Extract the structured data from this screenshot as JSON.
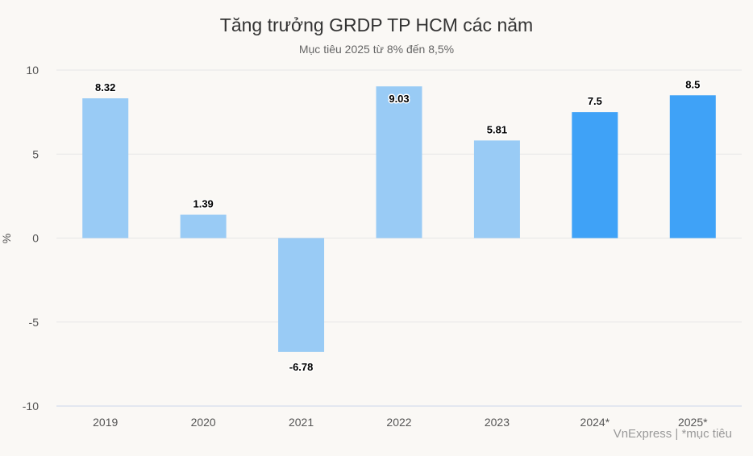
{
  "chart_data": {
    "type": "bar",
    "title": "Tăng trưởng GRDP TP HCM các năm",
    "subtitle": "Mục tiêu 2025 từ 8% đến 8,5%",
    "ylabel": "%",
    "xlabel": "",
    "categories": [
      "2019",
      "2020",
      "2021",
      "2022",
      "2023",
      "2024*",
      "2025*"
    ],
    "values": [
      8.32,
      1.39,
      -6.78,
      9.03,
      5.81,
      7.5,
      8.5
    ],
    "data_labels": [
      "8.32",
      "1.39",
      "-6.78",
      "9.03",
      "5.81",
      "7.5",
      "8.5"
    ],
    "ylim": [
      -10,
      10
    ],
    "yticks": [
      "10",
      "5",
      "0",
      "-5",
      "-10"
    ],
    "grid": true,
    "colors": {
      "actual": "#99cbf5",
      "target": "#3fa2f7",
      "grid": "#e6e6e6",
      "axis": "#ccd6eb"
    },
    "highlight_categories": [
      "2024*",
      "2025*"
    ]
  },
  "credits": "VnExpress | *mục tiêu"
}
